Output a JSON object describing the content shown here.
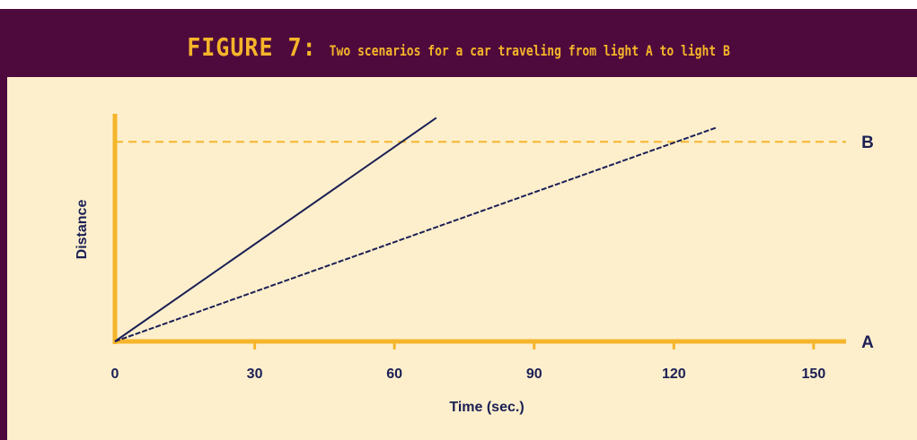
{
  "figure": {
    "label": "FIGURE 7:",
    "caption": "Two scenarios for a car traveling from light A to light B"
  },
  "colors": {
    "frame": "#4e0a3c",
    "panel": "#fdefcc",
    "accent": "#f5b52a",
    "line": "#1b1f55",
    "text": "#1b1f55"
  },
  "chart_data": {
    "type": "line",
    "title": "Two scenarios for a car traveling from light A to light B",
    "xlabel": "Time (sec.)",
    "ylabel": "Distance",
    "xlim": [
      0,
      156
    ],
    "ylim": [
      0,
      1.14
    ],
    "xticks": [
      0,
      30,
      60,
      90,
      120,
      150
    ],
    "xtick_labels": [
      "0",
      "30",
      "60",
      "90",
      "120",
      "150"
    ],
    "reference_lines": [
      {
        "label": "A",
        "y": 0,
        "style": "solid"
      },
      {
        "label": "B",
        "y": 1,
        "style": "dashed"
      }
    ],
    "series": [
      {
        "style": "solid",
        "x": [
          0,
          69
        ],
        "y": [
          0,
          1.12
        ]
      },
      {
        "style": "dashed",
        "x": [
          0,
          129
        ],
        "y": [
          0,
          1.07
        ]
      }
    ],
    "grid": false,
    "legend": "none"
  }
}
